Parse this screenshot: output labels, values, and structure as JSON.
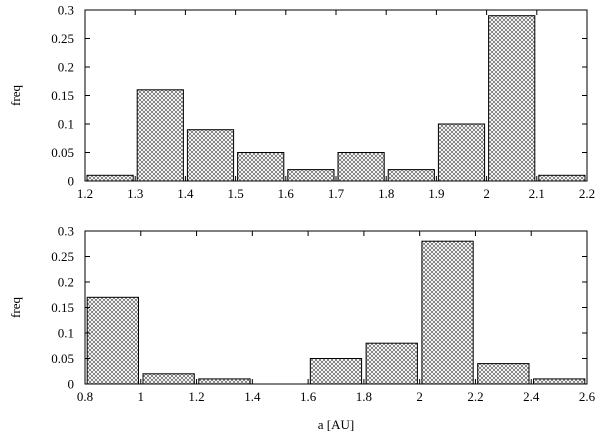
{
  "chart_data": [
    {
      "type": "bar",
      "bin_width": 0.1,
      "x": [
        1.25,
        1.35,
        1.45,
        1.55,
        1.65,
        1.75,
        1.85,
        1.95,
        2.05,
        2.15
      ],
      "values": [
        0.01,
        0.16,
        0.09,
        0.05,
        0.02,
        0.05,
        0.02,
        0.1,
        0.29,
        0.01
      ],
      "xlim": [
        1.2,
        2.2
      ],
      "ylim": [
        0,
        0.3
      ],
      "xticks": [
        "1.2",
        "1.3",
        "1.4",
        "1.5",
        "1.6",
        "1.7",
        "1.8",
        "1.9",
        "2",
        "2.1",
        "2.2"
      ],
      "yticks": [
        "0",
        "0.05",
        "0.1",
        "0.15",
        "0.2",
        "0.25",
        "0.3"
      ],
      "xlabel": "",
      "ylabel": "freq",
      "fill_pattern": "crosshatch",
      "grid": false
    },
    {
      "type": "bar",
      "bin_width": 0.2,
      "x": [
        0.9,
        1.1,
        1.3,
        1.5,
        1.7,
        1.9,
        2.1,
        2.3,
        2.5
      ],
      "values": [
        0.17,
        0.02,
        0.01,
        0.0,
        0.05,
        0.08,
        0.28,
        0.04,
        0.01
      ],
      "xlim": [
        0.8,
        2.6
      ],
      "ylim": [
        0,
        0.3
      ],
      "xticks": [
        "0.8",
        "1",
        "1.2",
        "1.4",
        "1.6",
        "1.8",
        "2",
        "2.2",
        "2.4",
        "2.6"
      ],
      "yticks": [
        "0",
        "0.05",
        "0.1",
        "0.15",
        "0.2",
        "0.25",
        "0.3"
      ],
      "xlabel": "a [AU]",
      "ylabel": "freq",
      "fill_pattern": "crosshatch",
      "grid": false
    }
  ],
  "colors": {
    "axis": "#000000",
    "bar_stroke": "#000000",
    "hatch": "#444444",
    "background": "#ffffff"
  }
}
